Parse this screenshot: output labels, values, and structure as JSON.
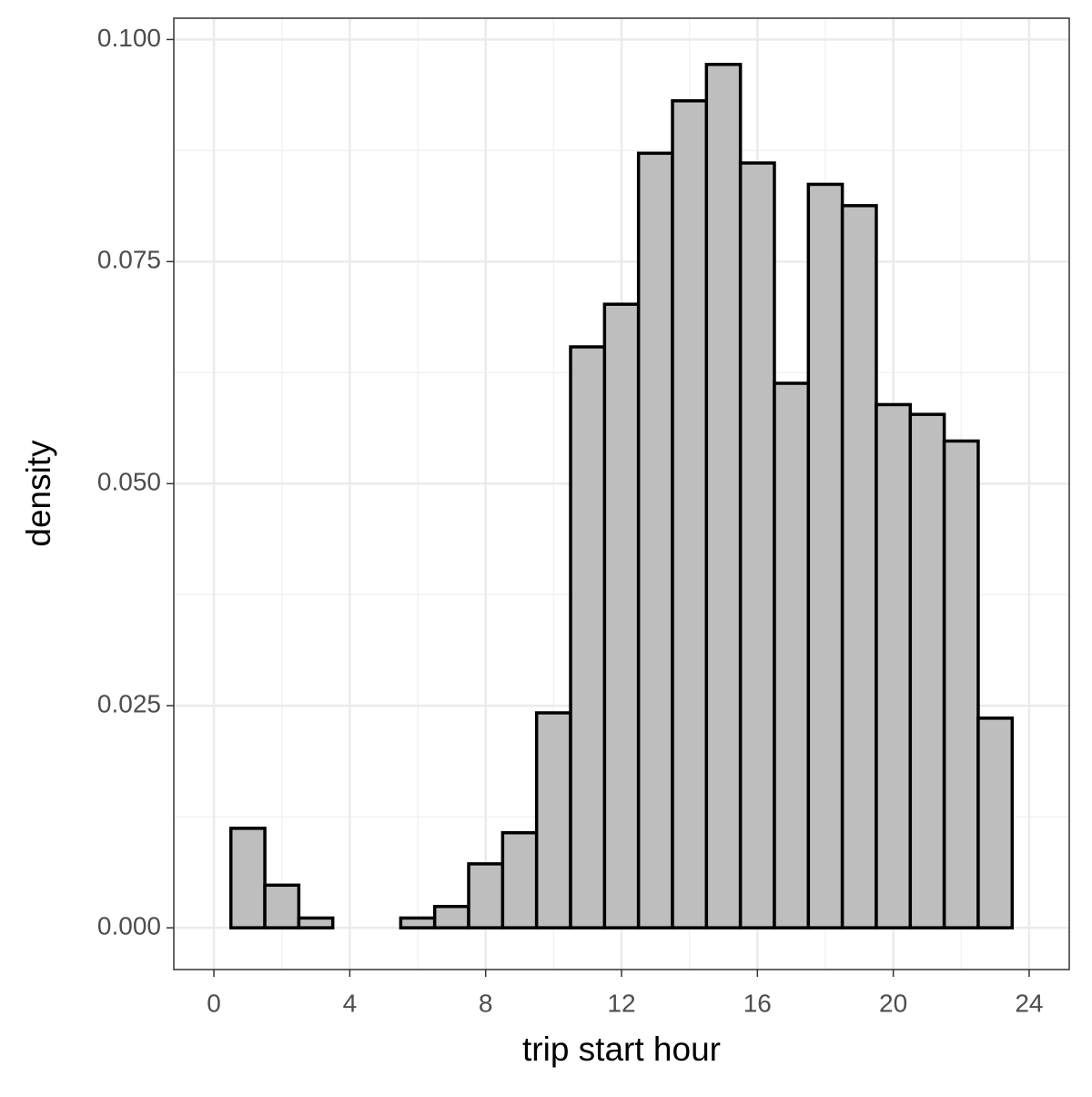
{
  "chart_data": {
    "type": "histogram",
    "x_label": "trip start hour",
    "y_label": "density",
    "bins": [
      0.5,
      1.5,
      2.5,
      3.5,
      4.5,
      5.5,
      6.5,
      7.5,
      8.5,
      9.5,
      10.5,
      11.5,
      12.5,
      13.5,
      14.5,
      15.5,
      16.5,
      17.5,
      18.5,
      19.5,
      20.5,
      21.5,
      22.5,
      23.5
    ],
    "values": [
      0.0112,
      0.0048,
      0.0011,
      0,
      0,
      0.0011,
      0.0024,
      0.0072,
      0.0107,
      0.0242,
      0.0654,
      0.0702,
      0.0872,
      0.0931,
      0.0972,
      0.0861,
      0.0613,
      0.0837,
      0.0813,
      0.0589,
      0.0578,
      0.0548,
      0.0236
    ],
    "color": "#bebebe",
    "edge_color": "#000000",
    "xlim": [
      -1.18,
      25.18
    ],
    "xticks": [
      0,
      4,
      8,
      12,
      16,
      20,
      24
    ],
    "ylim": [
      -0.0047,
      0.1024
    ],
    "yticks": [
      {
        "value": 0,
        "label": "0.000"
      },
      {
        "value": 0.025,
        "label": "0.025"
      },
      {
        "value": 0.05,
        "label": "0.050"
      },
      {
        "value": 0.075,
        "label": "0.075"
      },
      {
        "value": 0.1,
        "label": "0.100"
      }
    ],
    "grid": true
  }
}
